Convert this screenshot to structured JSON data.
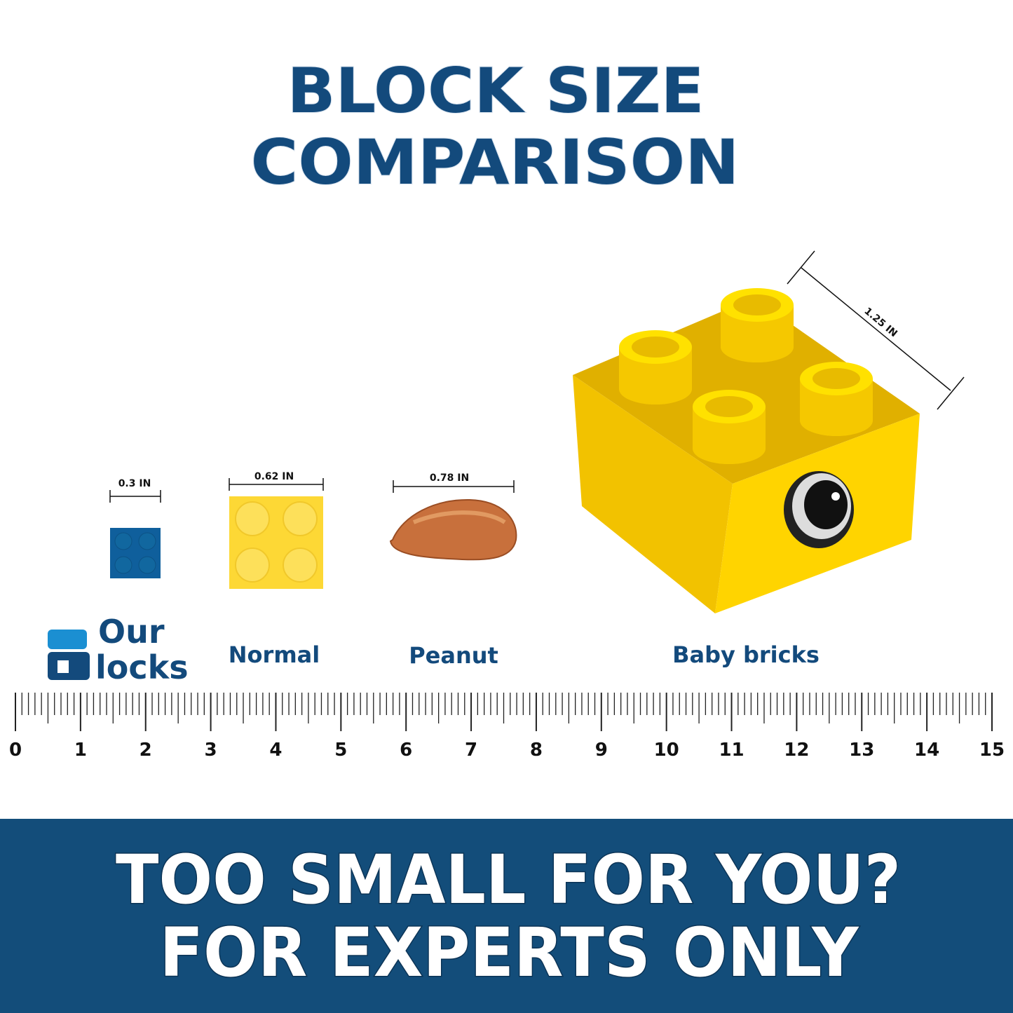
{
  "title": [
    "BLOCK SIZE",
    "COMPARISON"
  ],
  "items": [
    {
      "dimension": "0.3 IN"
    },
    {
      "name": "Normal",
      "dimension": "0.62 IN"
    },
    {
      "name": "Peanut",
      "dimension": "0.78 IN"
    },
    {
      "name": "Baby bricks",
      "dimension": "1.25 IN"
    }
  ],
  "logo": {
    "line1": "Our",
    "line2": "locks"
  },
  "ruler": {
    "labels": [
      0,
      1,
      2,
      3,
      4,
      5,
      6,
      7,
      8,
      9,
      10,
      11,
      12,
      13,
      14,
      15
    ]
  },
  "banner": [
    "TOO SMALL FOR YOU?",
    "FOR EXPERTS ONLY"
  ]
}
